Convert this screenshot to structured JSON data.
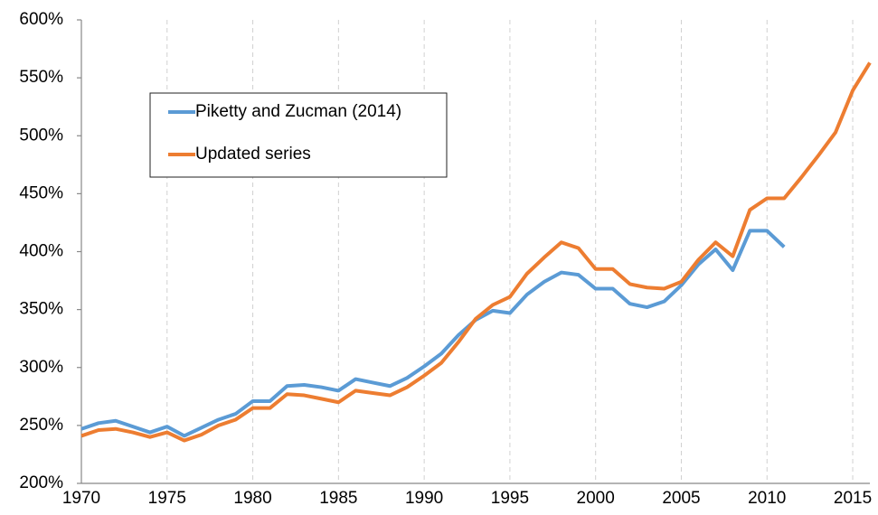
{
  "chart_data": {
    "type": "line",
    "x": [
      1970,
      1971,
      1972,
      1973,
      1974,
      1975,
      1976,
      1977,
      1978,
      1979,
      1980,
      1981,
      1982,
      1983,
      1984,
      1985,
      1986,
      1987,
      1988,
      1989,
      1990,
      1991,
      1992,
      1993,
      1994,
      1995,
      1996,
      1997,
      1998,
      1999,
      2000,
      2001,
      2002,
      2003,
      2004,
      2005,
      2006,
      2007,
      2008,
      2009,
      2010,
      2011,
      2012,
      2013,
      2014,
      2015,
      2016
    ],
    "series": [
      {
        "name": "Piketty and Zucman (2014)",
        "color": "#5b9bd5",
        "values": [
          247,
          252,
          254,
          249,
          244,
          249,
          241,
          248,
          255,
          260,
          271,
          271,
          284,
          285,
          283,
          280,
          290,
          287,
          284,
          291,
          301,
          312,
          328,
          341,
          349,
          347,
          363,
          374,
          382,
          380,
          368,
          368,
          355,
          352,
          357,
          371,
          389,
          402,
          384,
          418,
          418,
          404,
          null,
          null,
          null,
          null,
          null
        ]
      },
      {
        "name": "Updated series",
        "color": "#ed7d31",
        "values": [
          241,
          246,
          247,
          244,
          240,
          244,
          237,
          242,
          250,
          255,
          265,
          265,
          277,
          276,
          273,
          270,
          280,
          278,
          276,
          283,
          293,
          304,
          322,
          342,
          354,
          361,
          381,
          395,
          408,
          403,
          385,
          385,
          372,
          369,
          368,
          374,
          393,
          408,
          396,
          436,
          446,
          446,
          464,
          483,
          503,
          539,
          563
        ]
      }
    ],
    "xlim": [
      1970,
      2016
    ],
    "xticks": [
      1970,
      1975,
      1980,
      1985,
      1990,
      1995,
      2000,
      2005,
      2010,
      2015
    ],
    "ylim": [
      200,
      600
    ],
    "yticks": [
      {
        "value": 200,
        "label": "200%"
      },
      {
        "value": 250,
        "label": "250%"
      },
      {
        "value": 300,
        "label": "300%"
      },
      {
        "value": 350,
        "label": "350%"
      },
      {
        "value": 400,
        "label": "400%"
      },
      {
        "value": 450,
        "label": "450%"
      },
      {
        "value": 500,
        "label": "500%"
      },
      {
        "value": 550,
        "label": "550%"
      },
      {
        "value": 600,
        "label": "600%"
      }
    ],
    "grid": "x",
    "legend": "upper left"
  }
}
